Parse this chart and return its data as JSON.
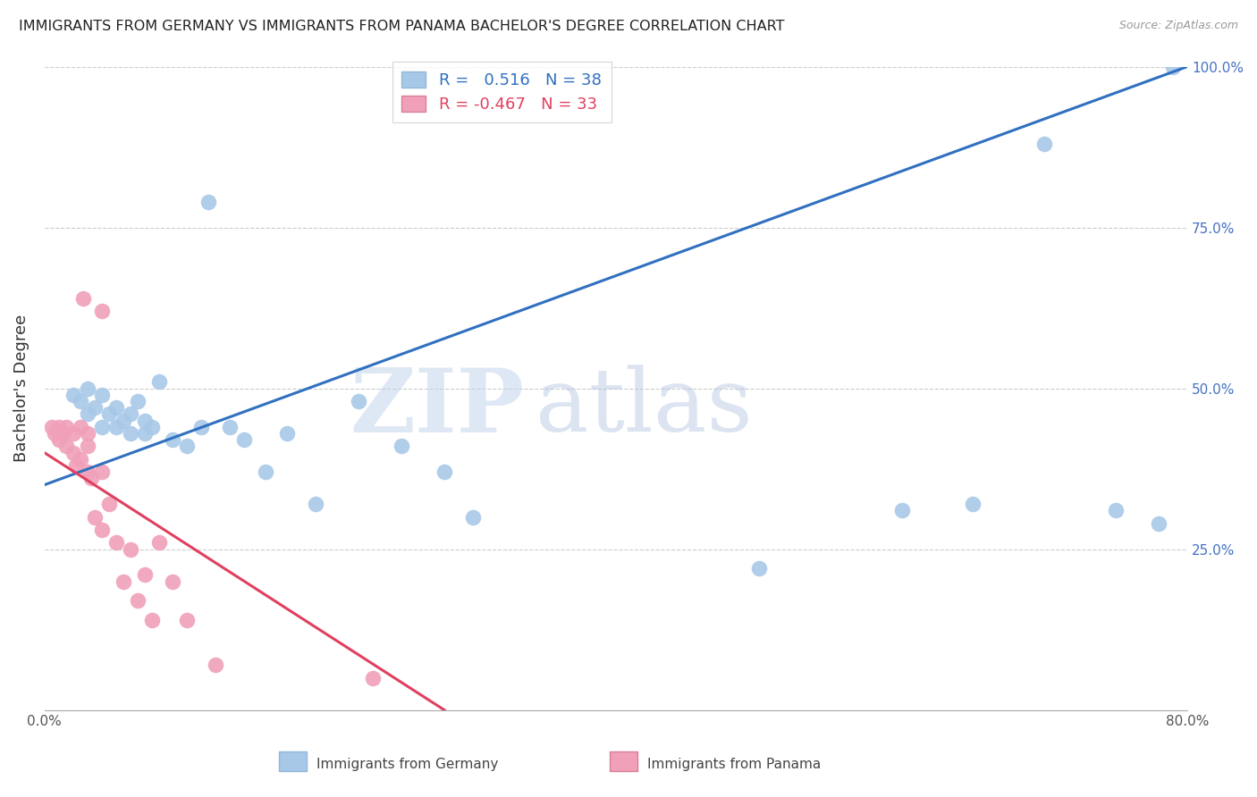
{
  "title": "IMMIGRANTS FROM GERMANY VS IMMIGRANTS FROM PANAMA BACHELOR'S DEGREE CORRELATION CHART",
  "source": "Source: ZipAtlas.com",
  "ylabel": "Bachelor's Degree",
  "xlim": [
    0.0,
    0.8
  ],
  "ylim": [
    0.0,
    1.0
  ],
  "germany_r": 0.516,
  "germany_n": 38,
  "panama_r": -0.467,
  "panama_n": 33,
  "germany_color": "#a8c8e8",
  "panama_color": "#f0a0b8",
  "germany_line_color": "#3070c0",
  "panama_line_color": "#e04060",
  "watermark_zip": "ZIP",
  "watermark_atlas": "atlas",
  "germany_line_x0": 0.0,
  "germany_line_y0": 0.35,
  "germany_line_x1": 0.8,
  "germany_line_y1": 1.0,
  "panama_line_x0": 0.0,
  "panama_line_y0": 0.4,
  "panama_line_x1": 0.28,
  "panama_line_y1": 0.0,
  "germany_x": [
    0.02,
    0.025,
    0.03,
    0.03,
    0.035,
    0.04,
    0.04,
    0.045,
    0.05,
    0.05,
    0.055,
    0.06,
    0.06,
    0.065,
    0.07,
    0.07,
    0.075,
    0.08,
    0.09,
    0.1,
    0.11,
    0.115,
    0.13,
    0.14,
    0.155,
    0.17,
    0.19,
    0.22,
    0.25,
    0.28,
    0.3,
    0.5,
    0.6,
    0.65,
    0.7,
    0.75,
    0.78,
    0.79
  ],
  "germany_y": [
    0.49,
    0.48,
    0.5,
    0.46,
    0.47,
    0.49,
    0.44,
    0.46,
    0.47,
    0.44,
    0.45,
    0.46,
    0.43,
    0.48,
    0.45,
    0.43,
    0.44,
    0.51,
    0.42,
    0.41,
    0.44,
    0.79,
    0.44,
    0.42,
    0.37,
    0.43,
    0.32,
    0.48,
    0.41,
    0.37,
    0.3,
    0.22,
    0.31,
    0.32,
    0.88,
    0.31,
    0.29,
    1.0
  ],
  "panama_x": [
    0.005,
    0.007,
    0.01,
    0.01,
    0.013,
    0.015,
    0.015,
    0.02,
    0.02,
    0.022,
    0.025,
    0.025,
    0.027,
    0.03,
    0.03,
    0.03,
    0.033,
    0.035,
    0.04,
    0.04,
    0.04,
    0.045,
    0.05,
    0.055,
    0.06,
    0.065,
    0.07,
    0.075,
    0.08,
    0.09,
    0.1,
    0.12,
    0.23
  ],
  "panama_y": [
    0.44,
    0.43,
    0.44,
    0.42,
    0.43,
    0.44,
    0.41,
    0.43,
    0.4,
    0.38,
    0.44,
    0.39,
    0.64,
    0.43,
    0.41,
    0.37,
    0.36,
    0.3,
    0.37,
    0.28,
    0.62,
    0.32,
    0.26,
    0.2,
    0.25,
    0.17,
    0.21,
    0.14,
    0.26,
    0.2,
    0.14,
    0.07,
    0.05
  ]
}
